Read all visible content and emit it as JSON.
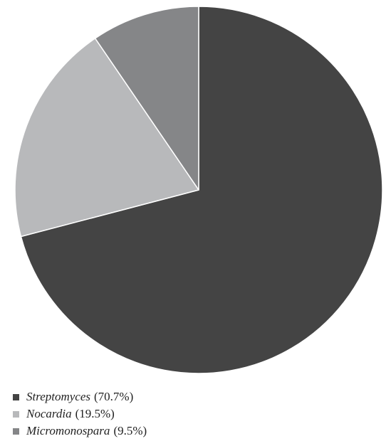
{
  "chart_data": {
    "type": "pie",
    "slices": [
      {
        "label": "Streptomyces",
        "value": 70.7,
        "pct_label": "(70.7%)",
        "color": "#444444"
      },
      {
        "label": "Nocardia",
        "value": 19.5,
        "pct_label": "(19.5%)",
        "color": "#b8b9bb"
      },
      {
        "label": "Micromonospara",
        "value": 9.5,
        "pct_label": "(9.5%)",
        "color": "#858688"
      }
    ],
    "start_angle": "12 o'clock",
    "direction": "clockwise",
    "legend_position": "bottom-left"
  }
}
